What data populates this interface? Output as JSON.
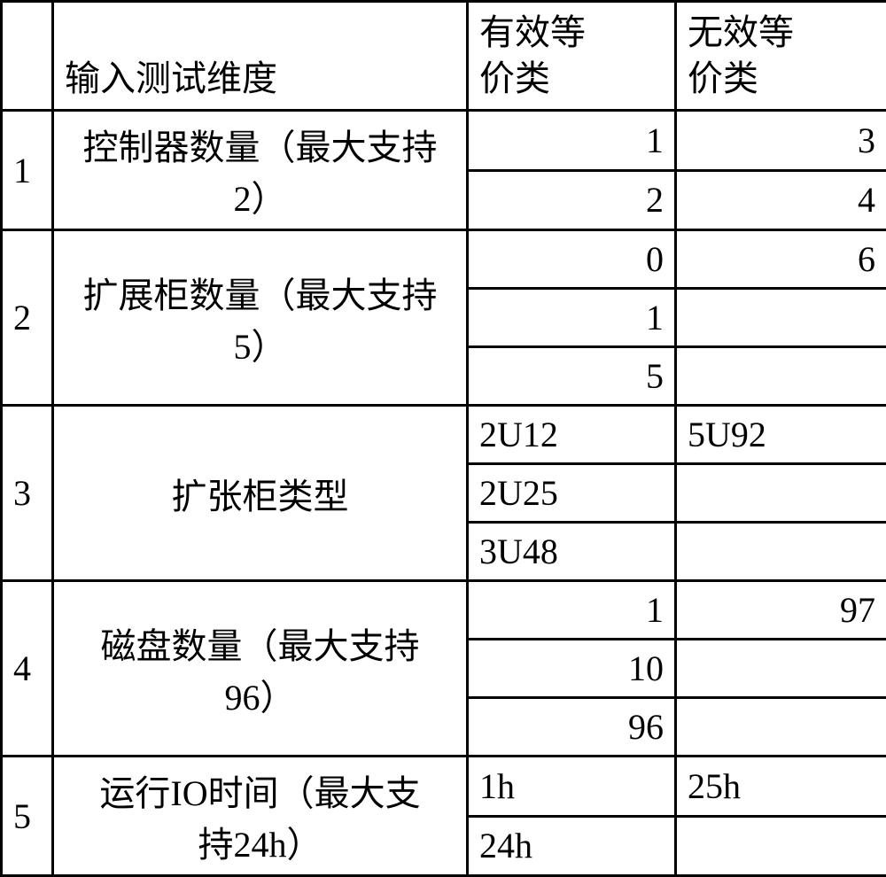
{
  "headers": {
    "index": "",
    "dimension": "输入测试维度",
    "valid": "有效等\n价类",
    "invalid": "无效等\n价类"
  },
  "rows": [
    {
      "index": "1",
      "dimension": "控制器数量（最大支持\n2）",
      "valid": [
        "1",
        "2"
      ],
      "invalid": [
        "3",
        "4"
      ],
      "valid_align": "right",
      "invalid_align": "right"
    },
    {
      "index": "2",
      "dimension": "扩展柜数量（最大支持\n5）",
      "valid": [
        "0",
        "1",
        "5"
      ],
      "invalid": [
        "6",
        "",
        ""
      ],
      "valid_align": "right",
      "invalid_align": "right"
    },
    {
      "index": "3",
      "dimension": "扩张柜类型",
      "valid": [
        "2U12",
        "2U25",
        "3U48"
      ],
      "invalid": [
        "5U92",
        "",
        ""
      ],
      "valid_align": "left",
      "invalid_align": "left"
    },
    {
      "index": "4",
      "dimension": "磁盘数量（最大支持\n96）",
      "valid": [
        "1",
        "10",
        "96"
      ],
      "invalid": [
        "97",
        "",
        ""
      ],
      "valid_align": "right",
      "invalid_align": "right"
    },
    {
      "index": "5",
      "dimension": "运行IO时间（最大支\n持24h）",
      "valid": [
        "1h",
        "24h"
      ],
      "invalid": [
        "25h",
        ""
      ],
      "valid_align": "left",
      "invalid_align": "left"
    }
  ]
}
